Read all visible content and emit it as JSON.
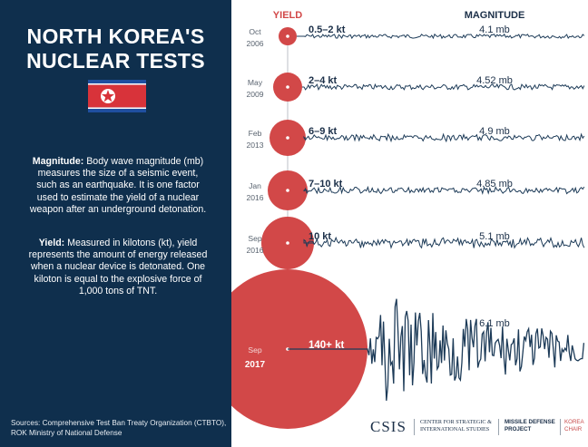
{
  "title": {
    "line1": "NORTH KOREA'S",
    "line2": "NUCLEAR TESTS"
  },
  "flag": {
    "name": "north-korea-flag"
  },
  "magnitude_def": {
    "term": "Magnitude:",
    "text": " Body wave magnitude (mb) measures the size of a seismic event, such as an earthquake. It is one factor used to estimate the yield of a nuclear weapon after an underground detonation."
  },
  "yield_def": {
    "term": "Yield:",
    "text": "  Measured in kilotons (kt), yield represents the amount of energy released when a nuclear device is detonated. One kiloton is equal to the explosive force of 1,000 tons of TNT."
  },
  "sources": "Sources: Comprehensive Test Ban Treaty Organization (CTBTO), ROK Ministry of National Defense",
  "headers": {
    "yield": "YIELD",
    "magnitude": "MAGNITUDE"
  },
  "tests": [
    {
      "month": "Oct",
      "year": "2006",
      "yield": "0.5–2 kt",
      "magnitude": "4.1 mb"
    },
    {
      "month": "May",
      "year": "2009",
      "yield": "2–4 kt",
      "magnitude": "4.52 mb"
    },
    {
      "month": "Feb",
      "year": "2013",
      "yield": "6–9 kt",
      "magnitude": "4.9 mb"
    },
    {
      "month": "Jan",
      "year": "2016",
      "yield": "7–10 kt",
      "magnitude": "4.85 mb"
    },
    {
      "month": "Sep",
      "year": "2016",
      "yield": "10 kt",
      "magnitude": "5.1 mb"
    },
    {
      "month": "Sep",
      "year": "2017",
      "yield": "140+ kt",
      "magnitude": "6.1 mb"
    }
  ],
  "footer": {
    "csis": "CSIS",
    "center": "CENTER FOR STRATEGIC & INTERNATIONAL STUDIES",
    "mdp": "MISSILE DEFENSE PROJECT",
    "chair": "KOREA CHAIR"
  },
  "colors": {
    "navy": "#0f2f4d",
    "red": "#d24848",
    "ink": "#1b2f48",
    "wave": "#1d3b58"
  }
}
